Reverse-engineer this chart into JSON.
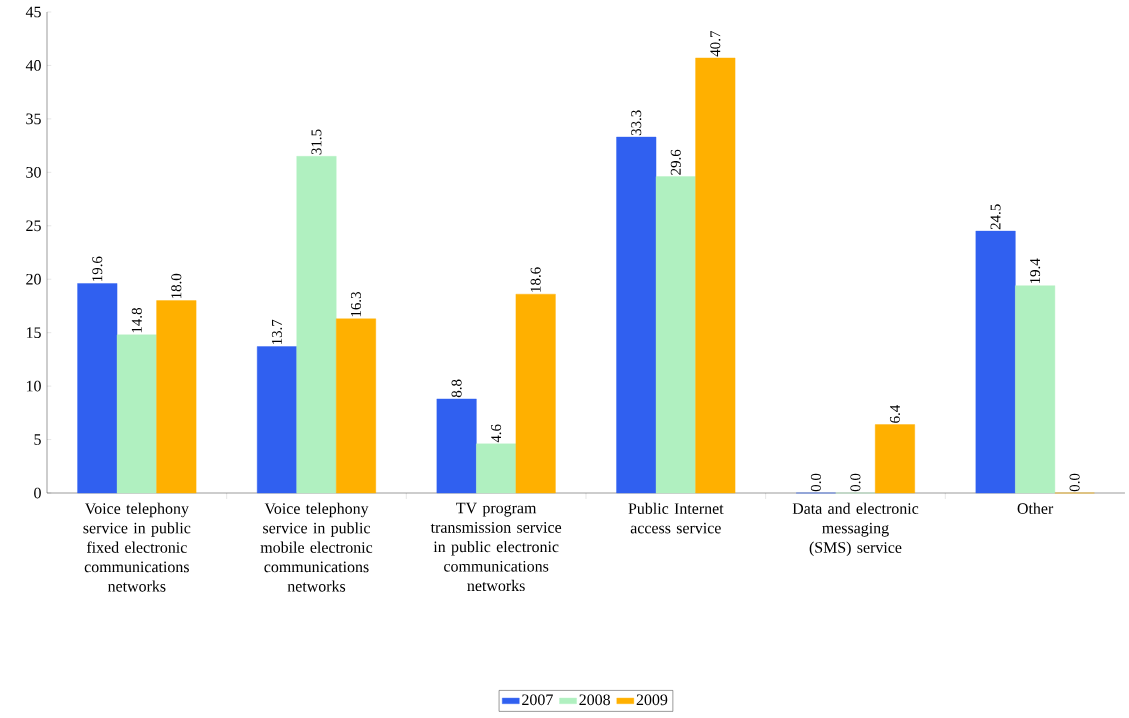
{
  "chart_data": {
    "type": "bar",
    "categories": [
      "Voice telephony service in public fixed electronic communications networks",
      "Voice telephony service in public mobile electronic communications networks",
      "TV program transmission service in public electronic communications networks",
      "Public Internet access service",
      "Data and electronic messaging (SMS) service",
      "Other"
    ],
    "series": [
      {
        "name": "2007",
        "color": "#3060f0",
        "values": [
          19.6,
          13.7,
          8.8,
          33.3,
          0.0,
          24.5
        ],
        "value_labels": [
          "19.6",
          "13.7",
          "8.8",
          "33.3",
          "0.0",
          "24.5"
        ]
      },
      {
        "name": "2008",
        "color": "#b0f0c0",
        "values": [
          14.8,
          31.5,
          4.6,
          29.6,
          0.0,
          19.4
        ],
        "value_labels": [
          "14.8",
          "31.5",
          "4.6",
          "29.6",
          "0.0",
          "19.4"
        ]
      },
      {
        "name": "2009",
        "color": "#ffb000",
        "values": [
          18.0,
          16.3,
          18.6,
          40.7,
          6.4,
          0.0
        ],
        "value_labels": [
          "18.0",
          "16.3",
          "18.6",
          "40.7",
          "6.4",
          "0.0"
        ]
      }
    ],
    "ylim": [
      0,
      45
    ],
    "yticks": [
      0,
      5,
      10,
      15,
      20,
      25,
      30,
      35,
      40,
      45
    ],
    "legend": "bottom",
    "grid": false
  }
}
